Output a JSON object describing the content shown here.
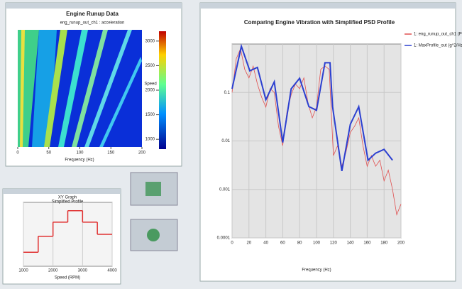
{
  "runup_panel": {
    "title": "Engine Runup Data",
    "subtitle": "eng_runup_out_ch1 : acceleration",
    "xlabel": "Frequency (Hz)",
    "xlim": [
      0,
      200
    ],
    "xticks": [
      0,
      50,
      100,
      150,
      200
    ],
    "colorbar_label": "Speed",
    "colorbar_lim": [
      800,
      3200
    ],
    "colorbar_ticks": [
      1000,
      1500,
      2000,
      2500,
      3000
    ]
  },
  "profile_panel": {
    "title": "XY Graph",
    "subtitle": "Simplified Profile",
    "xlabel": "Speed (RPM)",
    "color": "#e03030",
    "xlim": [
      1000,
      4000
    ],
    "xticks": [
      1000,
      2000,
      3000,
      4000
    ],
    "ylim": [
      0,
      1
    ],
    "x": [
      1000,
      1500,
      2000,
      2500,
      3000,
      3500
    ],
    "values": [
      0.22,
      0.47,
      0.69,
      0.87,
      0.69,
      0.5
    ]
  },
  "psd_panel": {
    "title": "Comparing Engine Vibration with Simplified PSD Profile",
    "xlabel": "Frequency (Hz)",
    "xlim": [
      0,
      200
    ],
    "xticks": [
      0,
      20,
      40,
      60,
      80,
      100,
      120,
      140,
      160,
      180,
      200
    ],
    "ylim": [
      0.0001,
      1
    ],
    "yticks": [
      0.0001,
      0.001,
      0.01,
      0.1
    ],
    "log_y": true,
    "grid": true,
    "series": [
      {
        "name": "1: eng_runup_out_ch1 (PSD)",
        "color": "#e05050",
        "x": [
          0,
          5,
          10,
          15,
          20,
          25,
          30,
          35,
          40,
          45,
          50,
          55,
          60,
          65,
          70,
          75,
          80,
          85,
          90,
          95,
          100,
          105,
          110,
          115,
          120,
          125,
          130,
          135,
          140,
          145,
          150,
          155,
          160,
          165,
          170,
          175,
          180,
          185,
          190,
          195,
          200
        ],
        "values": [
          0.1,
          0.5,
          0.8,
          0.3,
          0.2,
          0.35,
          0.15,
          0.08,
          0.05,
          0.12,
          0.1,
          0.02,
          0.008,
          0.04,
          0.09,
          0.15,
          0.12,
          0.2,
          0.06,
          0.03,
          0.05,
          0.3,
          0.35,
          0.3,
          0.005,
          0.008,
          0.003,
          0.006,
          0.015,
          0.02,
          0.03,
          0.008,
          0.003,
          0.005,
          0.003,
          0.004,
          0.0015,
          0.0025,
          0.001,
          0.0003,
          0.0005
        ]
      },
      {
        "name": "1: MaxProfile_out (g^2/Hz)",
        "color": "#2b3fd0",
        "x": [
          0,
          11,
          21,
          30,
          40,
          50,
          60,
          70,
          80,
          91,
          100,
          110,
          116,
          119,
          130,
          140,
          150,
          161,
          170,
          180,
          190
        ],
        "values": [
          0.119,
          0.9,
          0.28,
          0.33,
          0.071,
          0.166,
          0.0093,
          0.119,
          0.197,
          0.051,
          0.043,
          0.41,
          0.41,
          0.051,
          0.0024,
          0.022,
          0.051,
          0.004,
          0.0056,
          0.0067,
          0.004
        ]
      }
    ]
  }
}
